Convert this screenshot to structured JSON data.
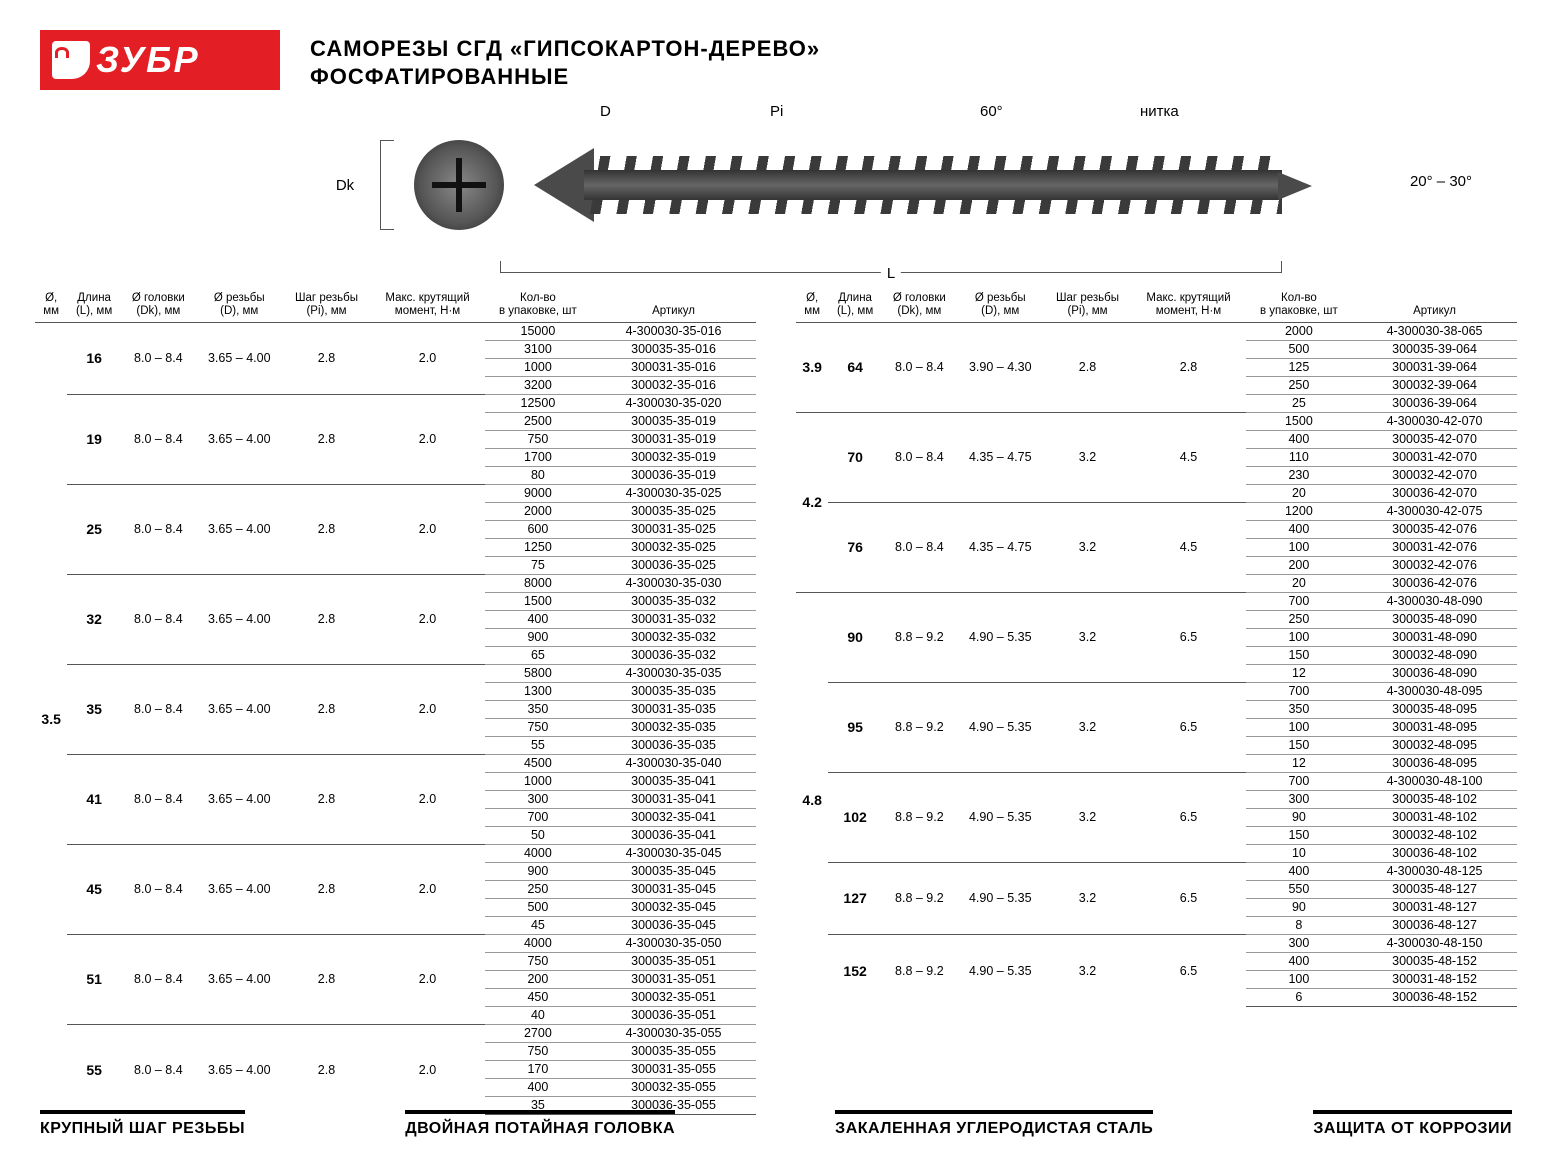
{
  "logo_text": "ЗУБР",
  "title": "САМОРЕЗЫ СГД «ГИПСОКАРТОН-ДЕРЕВО»",
  "subtitle": "ФОСФАТИРОВАННЫЕ",
  "diagram": {
    "dk": "Dk",
    "d": "D",
    "pi": "Pi",
    "angle60": "60°",
    "thread": "нитка",
    "tip_angle": "20° – 30°",
    "L": "L"
  },
  "headers": [
    "Ø,\nмм",
    "Длина\n(L), мм",
    "Ø головки\n(Dk), мм",
    "Ø резьбы\n(D), мм",
    "Шаг резьбы\n(Pi), мм",
    "Макс. крутящий\nмомент, Н·м",
    "Кол-во\nв упаковке, шт",
    "Артикул"
  ],
  "footer": [
    "КРУПНЫЙ ШАГ РЕЗЬБЫ",
    "ДВОЙНАЯ ПОТАЙНАЯ ГОЛОВКА",
    "ЗАКАЛЕННАЯ УГЛЕРОДИСТАЯ СТАЛЬ",
    "ЗАЩИТА ОТ КОРРОЗИИ"
  ],
  "left": {
    "blocks": [
      {
        "dia": "3.5",
        "rows": [
          {
            "len": "16",
            "dk": "8.0 – 8.4",
            "d": "3.65 – 4.00",
            "pi": "2.8",
            "tq": "2.0",
            "pk": [
              "15000",
              "3100",
              "1000",
              "3200"
            ],
            "art": [
              "4-300030-35-016",
              "300035-35-016",
              "300031-35-016",
              "300032-35-016"
            ]
          },
          {
            "len": "19",
            "dk": "8.0 – 8.4",
            "d": "3.65 – 4.00",
            "pi": "2.8",
            "tq": "2.0",
            "pk": [
              "12500",
              "2500",
              "750",
              "1700",
              "80"
            ],
            "art": [
              "4-300030-35-020",
              "300035-35-019",
              "300031-35-019",
              "300032-35-019",
              "300036-35-019"
            ]
          },
          {
            "len": "25",
            "dk": "8.0 – 8.4",
            "d": "3.65 – 4.00",
            "pi": "2.8",
            "tq": "2.0",
            "pk": [
              "9000",
              "2000",
              "600",
              "1250",
              "75"
            ],
            "art": [
              "4-300030-35-025",
              "300035-35-025",
              "300031-35-025",
              "300032-35-025",
              "300036-35-025"
            ]
          },
          {
            "len": "32",
            "dk": "8.0 – 8.4",
            "d": "3.65 – 4.00",
            "pi": "2.8",
            "tq": "2.0",
            "pk": [
              "8000",
              "1500",
              "400",
              "900",
              "65"
            ],
            "art": [
              "4-300030-35-030",
              "300035-35-032",
              "300031-35-032",
              "300032-35-032",
              "300036-35-032"
            ]
          },
          {
            "len": "35",
            "dk": "8.0 – 8.4",
            "d": "3.65 – 4.00",
            "pi": "2.8",
            "tq": "2.0",
            "pk": [
              "5800",
              "1300",
              "350",
              "750",
              "55"
            ],
            "art": [
              "4-300030-35-035",
              "300035-35-035",
              "300031-35-035",
              "300032-35-035",
              "300036-35-035"
            ]
          },
          {
            "len": "41",
            "dk": "8.0 – 8.4",
            "d": "3.65 – 4.00",
            "pi": "2.8",
            "tq": "2.0",
            "pk": [
              "4500",
              "1000",
              "300",
              "700",
              "50"
            ],
            "art": [
              "4-300030-35-040",
              "300035-35-041",
              "300031-35-041",
              "300032-35-041",
              "300036-35-041"
            ]
          },
          {
            "len": "45",
            "dk": "8.0 – 8.4",
            "d": "3.65 – 4.00",
            "pi": "2.8",
            "tq": "2.0",
            "pk": [
              "4000",
              "900",
              "250",
              "500",
              "45"
            ],
            "art": [
              "4-300030-35-045",
              "300035-35-045",
              "300031-35-045",
              "300032-35-045",
              "300036-35-045"
            ]
          },
          {
            "len": "51",
            "dk": "8.0 – 8.4",
            "d": "3.65 – 4.00",
            "pi": "2.8",
            "tq": "2.0",
            "pk": [
              "4000",
              "750",
              "200",
              "450",
              "40"
            ],
            "art": [
              "4-300030-35-050",
              "300035-35-051",
              "300031-35-051",
              "300032-35-051",
              "300036-35-051"
            ]
          },
          {
            "len": "55",
            "dk": "8.0 – 8.4",
            "d": "3.65 – 4.00",
            "pi": "2.8",
            "tq": "2.0",
            "pk": [
              "2700",
              "750",
              "170",
              "400",
              "35"
            ],
            "art": [
              "4-300030-35-055",
              "300035-35-055",
              "300031-35-055",
              "300032-35-055",
              "300036-35-055"
            ]
          }
        ]
      }
    ]
  },
  "right": {
    "blocks": [
      {
        "dia": "3.9",
        "rows": [
          {
            "len": "64",
            "dk": "8.0 – 8.4",
            "d": "3.90 – 4.30",
            "pi": "2.8",
            "tq": "2.8",
            "pk": [
              "2000",
              "500",
              "125",
              "250",
              "25"
            ],
            "art": [
              "4-300030-38-065",
              "300035-39-064",
              "300031-39-064",
              "300032-39-064",
              "300036-39-064"
            ]
          }
        ]
      },
      {
        "dia": "4.2",
        "rows": [
          {
            "len": "70",
            "dk": "8.0 – 8.4",
            "d": "4.35 – 4.75",
            "pi": "3.2",
            "tq": "4.5",
            "pk": [
              "1500",
              "400",
              "110",
              "230",
              "20"
            ],
            "art": [
              "4-300030-42-070",
              "300035-42-070",
              "300031-42-070",
              "300032-42-070",
              "300036-42-070"
            ]
          },
          {
            "len": "76",
            "dk": "8.0 – 8.4",
            "d": "4.35 – 4.75",
            "pi": "3.2",
            "tq": "4.5",
            "pk": [
              "1200",
              "400",
              "100",
              "200",
              "20"
            ],
            "art": [
              "4-300030-42-075",
              "300035-42-076",
              "300031-42-076",
              "300032-42-076",
              "300036-42-076"
            ]
          }
        ]
      },
      {
        "dia": "4.8",
        "rows": [
          {
            "len": "90",
            "dk": "8.8 – 9.2",
            "d": "4.90 – 5.35",
            "pi": "3.2",
            "tq": "6.5",
            "pk": [
              "700",
              "250",
              "100",
              "150",
              "12"
            ],
            "art": [
              "4-300030-48-090",
              "300035-48-090",
              "300031-48-090",
              "300032-48-090",
              "300036-48-090"
            ]
          },
          {
            "len": "95",
            "dk": "8.8 – 9.2",
            "d": "4.90 – 5.35",
            "pi": "3.2",
            "tq": "6.5",
            "pk": [
              "700",
              "350",
              "100",
              "150",
              "12"
            ],
            "art": [
              "4-300030-48-095",
              "300035-48-095",
              "300031-48-095",
              "300032-48-095",
              "300036-48-095"
            ]
          },
          {
            "len": "102",
            "dk": "8.8 – 9.2",
            "d": "4.90 – 5.35",
            "pi": "3.2",
            "tq": "6.5",
            "pk": [
              "700",
              "300",
              "90",
              "150",
              "10"
            ],
            "art": [
              "4-300030-48-100",
              "300035-48-102",
              "300031-48-102",
              "300032-48-102",
              "300036-48-102"
            ]
          },
          {
            "len": "127",
            "dk": "8.8 – 9.2",
            "d": "4.90 – 5.35",
            "pi": "3.2",
            "tq": "6.5",
            "pk": [
              "400",
              "550",
              "90",
              "8"
            ],
            "art": [
              "4-300030-48-125",
              "300035-48-127",
              "300031-48-127",
              "300036-48-127"
            ]
          },
          {
            "len": "152",
            "dk": "8.8 – 9.2",
            "d": "4.90 – 5.35",
            "pi": "3.2",
            "tq": "6.5",
            "pk": [
              "300",
              "400",
              "100",
              "6"
            ],
            "art": [
              "4-300030-48-150",
              "300035-48-152",
              "300031-48-152",
              "300036-48-152"
            ]
          }
        ]
      }
    ]
  }
}
